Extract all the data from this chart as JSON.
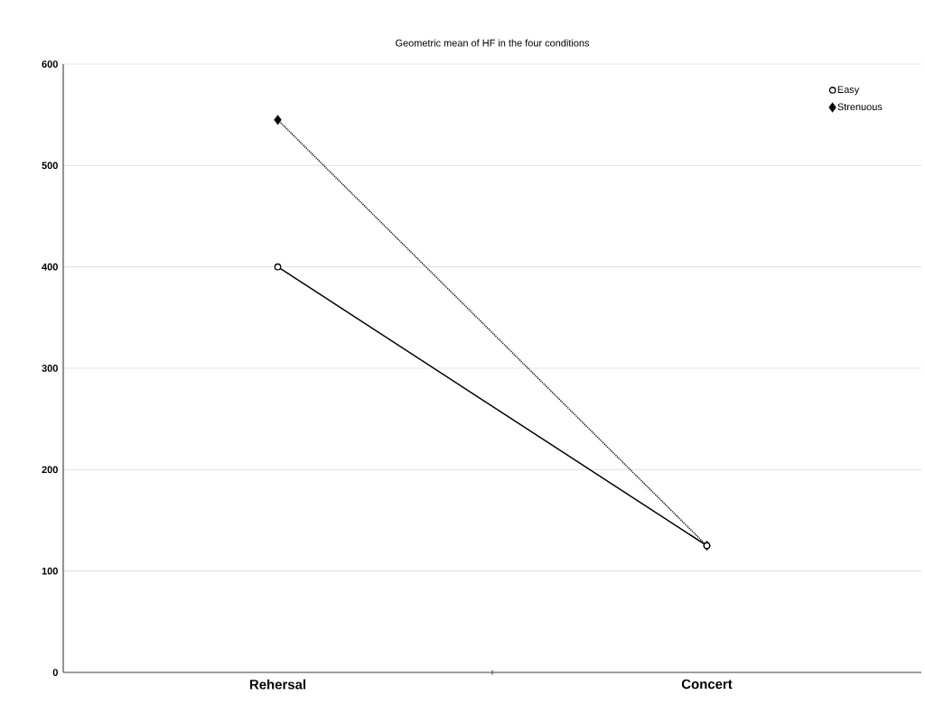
{
  "chart_data": {
    "type": "line",
    "title": "Geometric mean of HF in the four conditions",
    "categories": [
      "Rehersal",
      "Concert"
    ],
    "series": [
      {
        "name": "Easy",
        "color": "#000000",
        "values": [
          400,
          125
        ],
        "marker": "circle",
        "line_style": "solid"
      },
      {
        "name": "Strenuous",
        "color": "#0a0a0a",
        "values": [
          545,
          125
        ],
        "marker": "diamond",
        "line_style": "dotted"
      }
    ],
    "ylim": [
      0,
      600
    ],
    "yticks": [
      0,
      100,
      200,
      300,
      400,
      500,
      600
    ],
    "grid": "y",
    "legend": "top right"
  }
}
